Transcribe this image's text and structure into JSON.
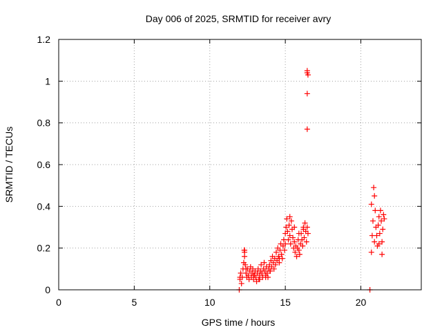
{
  "chart_data": {
    "type": "scatter",
    "title": "Day 006 of 2025, SRMTID for receiver avry",
    "xlabel": "GPS time / hours",
    "ylabel": "SRMTID / TECUs",
    "xlim": [
      0,
      24
    ],
    "ylim": [
      0,
      1.2
    ],
    "x_ticks": [
      0,
      5,
      10,
      15,
      20
    ],
    "x_tick_labels": [
      "0",
      "5",
      "10",
      "15",
      "20"
    ],
    "y_ticks": [
      0,
      0.2,
      0.4,
      0.6,
      0.8,
      1.0,
      1.2
    ],
    "y_tick_labels": [
      "0",
      "0.2",
      "0.4",
      "0.6",
      "0.8",
      "1",
      "1.2"
    ],
    "grid": true,
    "marker": "+",
    "colors": {
      "points": "#ff0000",
      "grid": "#a0a0a0",
      "axes": "#000000"
    },
    "series": [
      {
        "name": "SRMTID",
        "x": [
          11.95,
          12.0,
          12.05,
          12.1,
          12.15,
          12.2,
          12.25,
          12.28,
          12.3,
          12.35,
          12.4,
          12.45,
          12.5,
          12.55,
          12.6,
          12.65,
          12.7,
          12.75,
          12.8,
          12.85,
          12.9,
          12.95,
          13.0,
          13.05,
          13.1,
          13.15,
          13.2,
          13.25,
          13.3,
          13.35,
          13.4,
          13.45,
          13.5,
          13.55,
          13.6,
          13.65,
          13.7,
          13.75,
          13.8,
          13.85,
          13.9,
          13.95,
          14.0,
          14.05,
          14.1,
          14.15,
          14.2,
          14.25,
          14.3,
          14.35,
          14.4,
          14.45,
          14.5,
          14.55,
          14.6,
          14.65,
          14.7,
          14.75,
          14.8,
          14.85,
          14.9,
          14.95,
          15.0,
          15.05,
          15.1,
          15.15,
          15.2,
          15.25,
          15.3,
          15.35,
          15.4,
          15.45,
          15.5,
          15.55,
          15.6,
          15.65,
          15.7,
          15.75,
          15.8,
          15.85,
          15.9,
          15.95,
          16.0,
          16.05,
          16.1,
          16.15,
          16.2,
          16.25,
          16.3,
          16.35,
          16.4,
          16.45,
          16.5,
          16.45,
          16.45,
          16.5,
          16.45,
          16.45,
          20.6,
          20.7,
          20.75,
          20.8,
          20.85,
          20.9,
          20.95,
          21.0,
          21.05,
          21.1,
          21.15,
          21.2,
          21.25,
          21.3,
          21.35,
          21.4,
          21.45,
          21.5,
          21.55,
          12.3,
          12.3,
          12.0,
          12.4,
          12.9,
          13.3,
          13.7,
          14.0,
          14.6,
          15.0,
          15.3,
          15.6,
          15.9,
          16.2,
          20.7,
          20.9,
          21.2,
          21.4
        ],
        "y": [
          0.0,
          0.05,
          0.08,
          0.03,
          0.06,
          0.1,
          0.13,
          0.19,
          0.16,
          0.12,
          0.08,
          0.06,
          0.1,
          0.07,
          0.05,
          0.09,
          0.11,
          0.06,
          0.08,
          0.1,
          0.05,
          0.07,
          0.09,
          0.06,
          0.04,
          0.08,
          0.1,
          0.05,
          0.07,
          0.09,
          0.12,
          0.08,
          0.06,
          0.1,
          0.13,
          0.09,
          0.07,
          0.11,
          0.08,
          0.06,
          0.1,
          0.12,
          0.09,
          0.14,
          0.11,
          0.16,
          0.13,
          0.1,
          0.15,
          0.12,
          0.18,
          0.14,
          0.2,
          0.16,
          0.13,
          0.19,
          0.22,
          0.17,
          0.15,
          0.21,
          0.24,
          0.19,
          0.27,
          0.3,
          0.34,
          0.28,
          0.24,
          0.31,
          0.26,
          0.22,
          0.33,
          0.29,
          0.25,
          0.2,
          0.23,
          0.18,
          0.21,
          0.16,
          0.2,
          0.24,
          0.19,
          0.17,
          0.22,
          0.27,
          0.24,
          0.21,
          0.29,
          0.25,
          0.32,
          0.28,
          0.23,
          0.3,
          0.27,
          0.77,
          0.94,
          1.03,
          1.04,
          1.05,
          0.0,
          0.18,
          0.26,
          0.33,
          0.49,
          0.45,
          0.38,
          0.3,
          0.26,
          0.21,
          0.31,
          0.35,
          0.27,
          0.38,
          0.33,
          0.23,
          0.29,
          0.36,
          0.34,
          0.19,
          0.18,
          0.06,
          0.1,
          0.07,
          0.05,
          0.06,
          0.09,
          0.15,
          0.22,
          0.35,
          0.3,
          0.27,
          0.3,
          0.41,
          0.23,
          0.22,
          0.17
        ]
      }
    ]
  }
}
